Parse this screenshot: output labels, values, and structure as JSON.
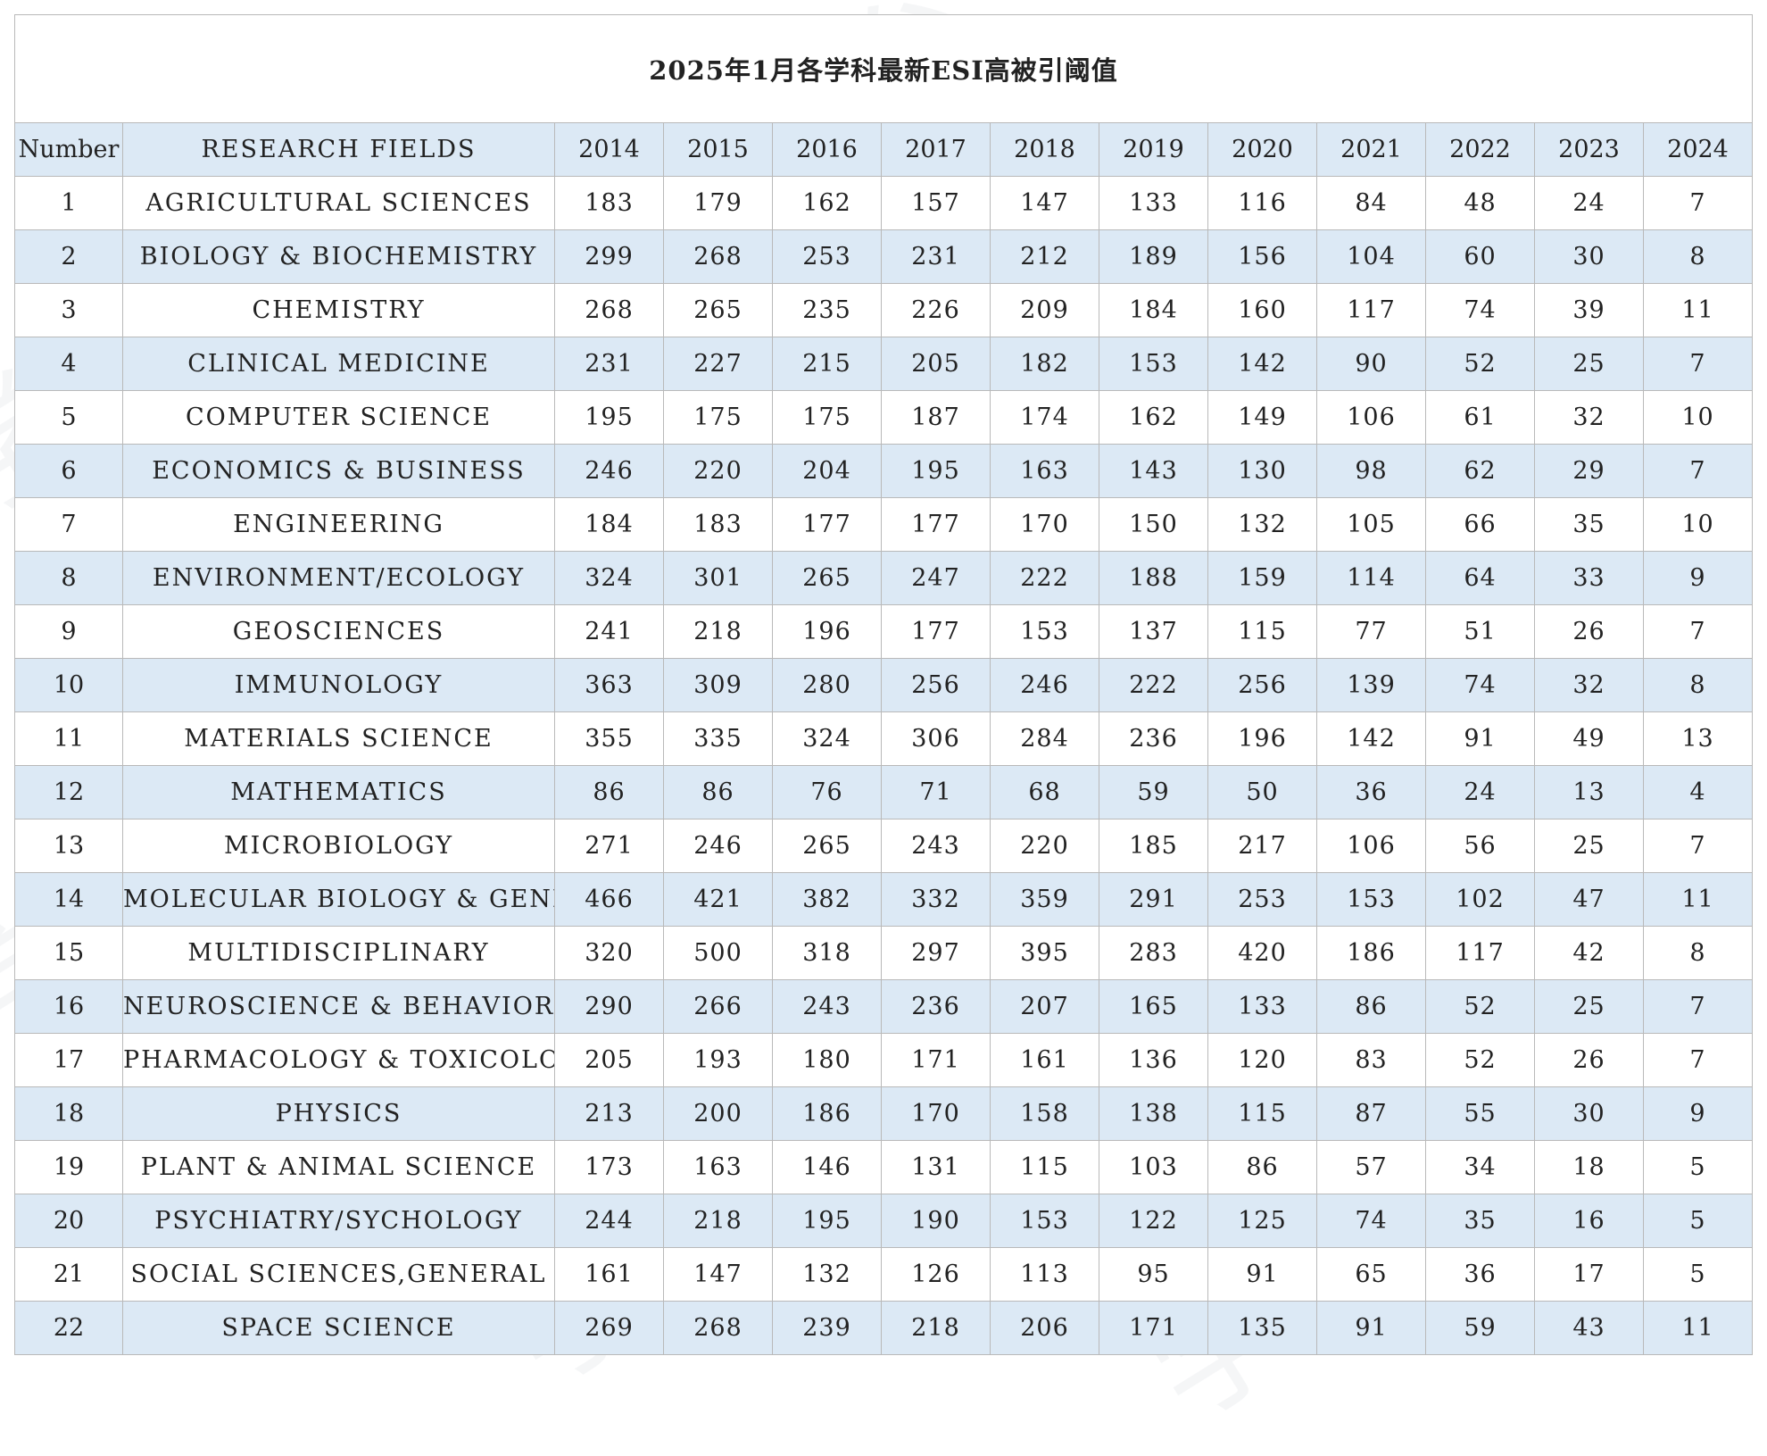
{
  "title": "2025年1月各学科最新ESI高被引阈值",
  "headers": {
    "number": "Number",
    "field": "RESEARCH FIELDS",
    "years": [
      "2014",
      "2015",
      "2016",
      "2017",
      "2018",
      "2019",
      "2020",
      "2021",
      "2022",
      "2023",
      "2024"
    ]
  },
  "rows": [
    {
      "number": "1",
      "field": "AGRICULTURAL SCIENCES",
      "values": [
        "183",
        "179",
        "162",
        "157",
        "147",
        "133",
        "116",
        "84",
        "48",
        "24",
        "7"
      ]
    },
    {
      "number": "2",
      "field": "BIOLOGY & BIOCHEMISTRY",
      "values": [
        "299",
        "268",
        "253",
        "231",
        "212",
        "189",
        "156",
        "104",
        "60",
        "30",
        "8"
      ]
    },
    {
      "number": "3",
      "field": "CHEMISTRY",
      "values": [
        "268",
        "265",
        "235",
        "226",
        "209",
        "184",
        "160",
        "117",
        "74",
        "39",
        "11"
      ]
    },
    {
      "number": "4",
      "field": "CLINICAL MEDICINE",
      "values": [
        "231",
        "227",
        "215",
        "205",
        "182",
        "153",
        "142",
        "90",
        "52",
        "25",
        "7"
      ]
    },
    {
      "number": "5",
      "field": "COMPUTER SCIENCE",
      "values": [
        "195",
        "175",
        "175",
        "187",
        "174",
        "162",
        "149",
        "106",
        "61",
        "32",
        "10"
      ]
    },
    {
      "number": "6",
      "field": "ECONOMICS & BUSINESS",
      "values": [
        "246",
        "220",
        "204",
        "195",
        "163",
        "143",
        "130",
        "98",
        "62",
        "29",
        "7"
      ]
    },
    {
      "number": "7",
      "field": "ENGINEERING",
      "values": [
        "184",
        "183",
        "177",
        "177",
        "170",
        "150",
        "132",
        "105",
        "66",
        "35",
        "10"
      ]
    },
    {
      "number": "8",
      "field": "ENVIRONMENT/ECOLOGY",
      "values": [
        "324",
        "301",
        "265",
        "247",
        "222",
        "188",
        "159",
        "114",
        "64",
        "33",
        "9"
      ]
    },
    {
      "number": "9",
      "field": "GEOSCIENCES",
      "values": [
        "241",
        "218",
        "196",
        "177",
        "153",
        "137",
        "115",
        "77",
        "51",
        "26",
        "7"
      ]
    },
    {
      "number": "10",
      "field": "IMMUNOLOGY",
      "values": [
        "363",
        "309",
        "280",
        "256",
        "246",
        "222",
        "256",
        "139",
        "74",
        "32",
        "8"
      ]
    },
    {
      "number": "11",
      "field": "MATERIALS SCIENCE",
      "values": [
        "355",
        "335",
        "324",
        "306",
        "284",
        "236",
        "196",
        "142",
        "91",
        "49",
        "13"
      ]
    },
    {
      "number": "12",
      "field": "MATHEMATICS",
      "values": [
        "86",
        "86",
        "76",
        "71",
        "68",
        "59",
        "50",
        "36",
        "24",
        "13",
        "4"
      ]
    },
    {
      "number": "13",
      "field": "MICROBIOLOGY",
      "values": [
        "271",
        "246",
        "265",
        "243",
        "220",
        "185",
        "217",
        "106",
        "56",
        "25",
        "7"
      ]
    },
    {
      "number": "14",
      "field": "MOLECULAR BIOLOGY & GENETICS",
      "values": [
        "466",
        "421",
        "382",
        "332",
        "359",
        "291",
        "253",
        "153",
        "102",
        "47",
        "11"
      ]
    },
    {
      "number": "15",
      "field": "MULTIDISCIPLINARY",
      "values": [
        "320",
        "500",
        "318",
        "297",
        "395",
        "283",
        "420",
        "186",
        "117",
        "42",
        "8"
      ]
    },
    {
      "number": "16",
      "field": "NEUROSCIENCE & BEHAVIOR",
      "values": [
        "290",
        "266",
        "243",
        "236",
        "207",
        "165",
        "133",
        "86",
        "52",
        "25",
        "7"
      ]
    },
    {
      "number": "17",
      "field": "PHARMACOLOGY & TOXICOLOGY",
      "values": [
        "205",
        "193",
        "180",
        "171",
        "161",
        "136",
        "120",
        "83",
        "52",
        "26",
        "7"
      ]
    },
    {
      "number": "18",
      "field": "PHYSICS",
      "values": [
        "213",
        "200",
        "186",
        "170",
        "158",
        "138",
        "115",
        "87",
        "55",
        "30",
        "9"
      ]
    },
    {
      "number": "19",
      "field": "PLANT & ANIMAL SCIENCE",
      "values": [
        "173",
        "163",
        "146",
        "131",
        "115",
        "103",
        "86",
        "57",
        "34",
        "18",
        "5"
      ]
    },
    {
      "number": "20",
      "field": "PSYCHIATRY/SYCHOLOGY",
      "values": [
        "244",
        "218",
        "195",
        "190",
        "153",
        "122",
        "125",
        "74",
        "35",
        "16",
        "5"
      ]
    },
    {
      "number": "21",
      "field": "SOCIAL SCIENCES,GENERAL",
      "values": [
        "161",
        "147",
        "132",
        "126",
        "113",
        "95",
        "91",
        "65",
        "36",
        "17",
        "5"
      ]
    },
    {
      "number": "22",
      "field": "SPACE SCIENCE",
      "values": [
        "269",
        "268",
        "239",
        "218",
        "206",
        "171",
        "135",
        "91",
        "59",
        "43",
        "11"
      ]
    }
  ],
  "colors": {
    "header_bg": "#dce9f5",
    "stripe_bg": "#dce9f5",
    "border": "#b9b9b9"
  },
  "watermark": "学点平台"
}
